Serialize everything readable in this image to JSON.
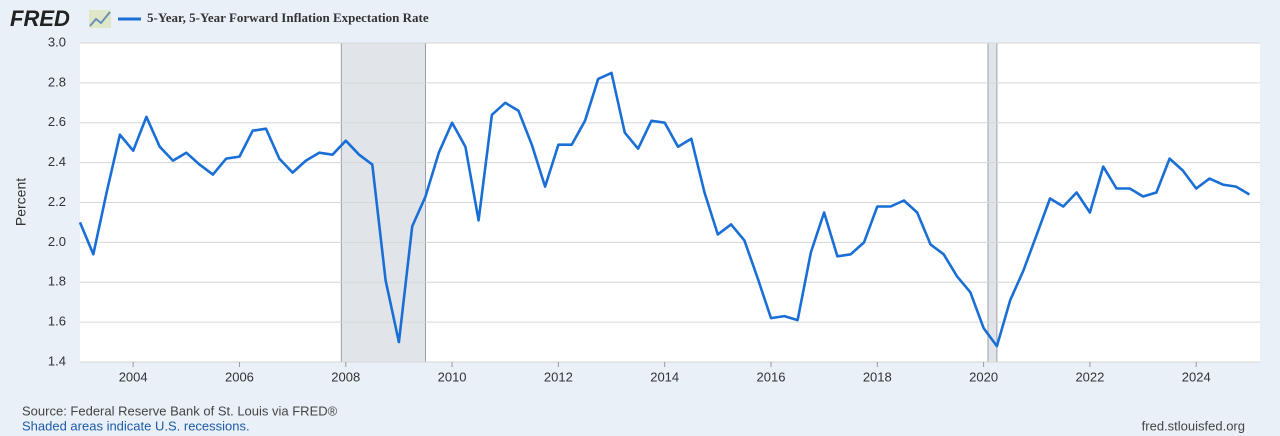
{
  "chart_data": {
    "type": "line",
    "logo": "FRED",
    "y_label": "Percent",
    "source": "Source: Federal Reserve Bank of St. Louis via FRED®",
    "note": "Shaded areas indicate U.S. recessions.",
    "site": "fred.stlouisfed.org",
    "x": [
      2003,
      2003.25,
      2003.5,
      2003.75,
      2004,
      2004.25,
      2004.5,
      2004.75,
      2005,
      2005.25,
      2005.5,
      2005.75,
      2006,
      2006.25,
      2006.5,
      2006.75,
      2007,
      2007.25,
      2007.5,
      2007.75,
      2008,
      2008.25,
      2008.5,
      2008.75,
      2009,
      2009.25,
      2009.5,
      2009.75,
      2010,
      2010.25,
      2010.5,
      2010.75,
      2011,
      2011.25,
      2011.5,
      2011.75,
      2012,
      2012.25,
      2012.5,
      2012.75,
      2013,
      2013.25,
      2013.5,
      2013.75,
      2014,
      2014.25,
      2014.5,
      2014.75,
      2015,
      2015.25,
      2015.5,
      2015.75,
      2016,
      2016.25,
      2016.5,
      2016.75,
      2017,
      2017.25,
      2017.5,
      2017.75,
      2018,
      2018.25,
      2018.5,
      2018.75,
      2019,
      2019.25,
      2019.5,
      2019.75,
      2020,
      2020.25,
      2020.5,
      2020.75,
      2021,
      2021.25,
      2021.5,
      2021.75,
      2022,
      2022.25,
      2022.5,
      2022.75,
      2023,
      2023.25,
      2023.5,
      2023.75,
      2024,
      2024.25,
      2024.5,
      2024.75,
      2025
    ],
    "series": [
      {
        "name": "5-Year, 5-Year Forward Inflation Expectation Rate",
        "color": "#1a6fd6",
        "values": [
          2.1,
          1.94,
          2.25,
          2.54,
          2.46,
          2.63,
          2.48,
          2.41,
          2.45,
          2.39,
          2.34,
          2.42,
          2.43,
          2.56,
          2.57,
          2.42,
          2.35,
          2.41,
          2.45,
          2.44,
          2.51,
          2.44,
          2.39,
          1.81,
          1.5,
          2.08,
          2.23,
          2.45,
          2.6,
          2.48,
          2.11,
          2.64,
          2.7,
          2.66,
          2.49,
          2.28,
          2.49,
          2.49,
          2.61,
          2.82,
          2.85,
          2.55,
          2.47,
          2.61,
          2.6,
          2.48,
          2.52,
          2.25,
          2.04,
          2.09,
          2.01,
          1.82,
          1.62,
          1.63,
          1.61,
          1.95,
          2.15,
          1.93,
          1.94,
          2.0,
          2.18,
          2.18,
          2.21,
          2.15,
          1.99,
          1.94,
          1.83,
          1.75,
          1.57,
          1.48,
          1.71,
          1.86,
          2.04,
          2.22,
          2.18,
          2.25,
          2.15,
          2.38,
          2.27,
          2.27,
          2.23,
          2.25,
          2.42,
          2.36,
          2.27,
          2.32,
          2.29,
          2.28,
          2.24
        ]
      }
    ],
    "recessions": [
      [
        2007.917,
        2009.5
      ],
      [
        2020.083,
        2020.25
      ]
    ],
    "xlim": [
      2003,
      2025.2
    ],
    "xticks": [
      2004,
      2006,
      2008,
      2010,
      2012,
      2014,
      2016,
      2018,
      2020,
      2022,
      2024
    ],
    "ylim": [
      1.4,
      3.0
    ],
    "yticks": [
      1.4,
      1.6,
      1.8,
      {
        "value": 2,
        "label": "2.0"
      },
      2.2,
      2.4,
      2.6,
      2.8,
      {
        "value": 3,
        "label": "3.0"
      }
    ],
    "grid": true
  }
}
